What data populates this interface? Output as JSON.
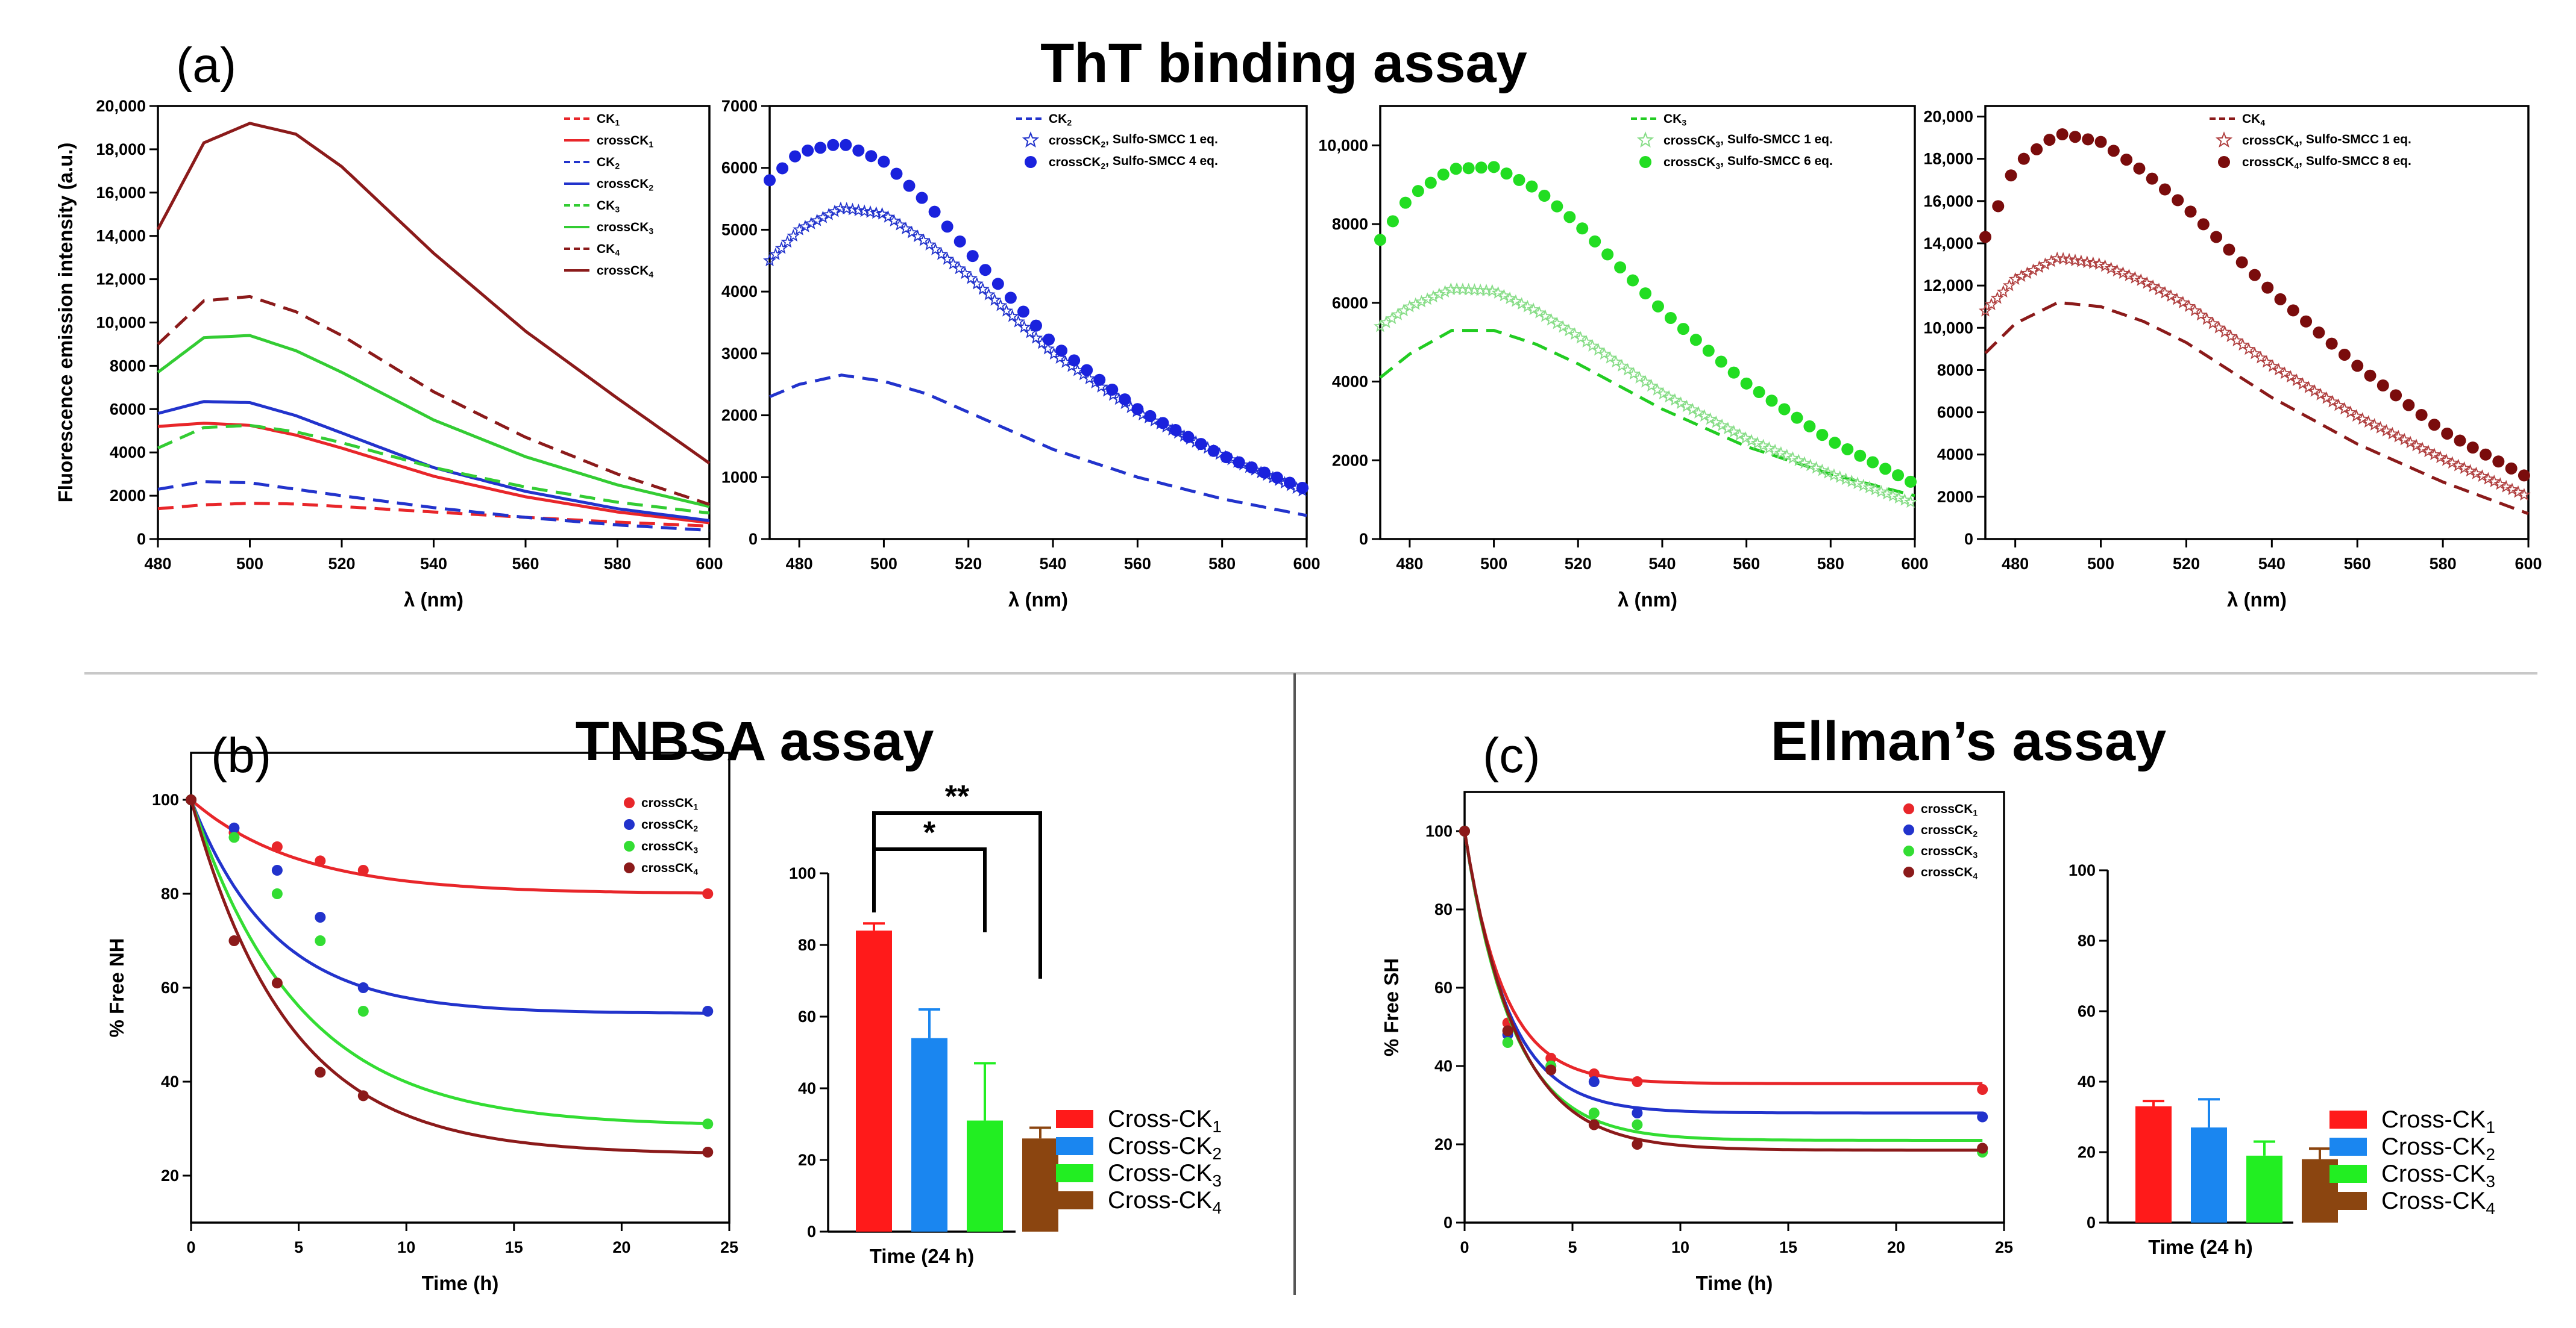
{
  "figure": {
    "labels": {
      "a": "(a)",
      "b": "(b)",
      "c": "(c)"
    },
    "titles": {
      "tht": "ThT binding assay",
      "tnbsa": "TNBSA assay",
      "ellman": "Ellman’s assay"
    }
  },
  "chart_data": [
    {
      "id": "a1",
      "type": "line",
      "xlabel": "λ (nm)",
      "ylabel": "Fluorescence emission intensity (a.u.)",
      "xlim": [
        480,
        600
      ],
      "ylim": [
        0,
        20000
      ],
      "xticks": [
        480,
        500,
        520,
        540,
        560,
        580,
        600
      ],
      "yticks": [
        0,
        2000,
        4000,
        6000,
        8000,
        10000,
        12000,
        14000,
        16000,
        18000,
        20000
      ],
      "ytick_labels": [
        "0",
        "2000",
        "4000",
        "6000",
        "8000",
        "10,000",
        "12,000",
        "14,000",
        "16,000",
        "18,000",
        "20,000"
      ],
      "legend_position": "top-right",
      "series": [
        {
          "name": "CK",
          "sub": "1",
          "color": "#e8262a",
          "style": "dash",
          "x": [
            480,
            490,
            500,
            510,
            520,
            540,
            560,
            580,
            600
          ],
          "y": [
            1400,
            1580,
            1650,
            1620,
            1500,
            1250,
            1000,
            780,
            600
          ]
        },
        {
          "name": "crossCK",
          "sub": "1",
          "color": "#e8262a",
          "style": "solid",
          "x": [
            480,
            490,
            500,
            510,
            520,
            540,
            560,
            580,
            600
          ],
          "y": [
            5200,
            5350,
            5250,
            4800,
            4200,
            2900,
            1950,
            1250,
            750
          ]
        },
        {
          "name": "CK",
          "sub": "2",
          "color": "#2233cc",
          "style": "dash",
          "x": [
            480,
            490,
            500,
            510,
            520,
            540,
            560,
            580,
            600
          ],
          "y": [
            2300,
            2650,
            2600,
            2300,
            2000,
            1450,
            1000,
            650,
            400
          ]
        },
        {
          "name": "crossCK",
          "sub": "2",
          "color": "#2233cc",
          "style": "solid",
          "x": [
            480,
            490,
            500,
            510,
            520,
            540,
            560,
            580,
            600
          ],
          "y": [
            5800,
            6350,
            6300,
            5700,
            4900,
            3300,
            2200,
            1400,
            850
          ]
        },
        {
          "name": "CK",
          "sub": "3",
          "color": "#33cc33",
          "style": "dash",
          "x": [
            480,
            490,
            500,
            510,
            520,
            540,
            560,
            580,
            600
          ],
          "y": [
            4200,
            5150,
            5250,
            4950,
            4450,
            3300,
            2400,
            1700,
            1200
          ]
        },
        {
          "name": "crossCK",
          "sub": "3",
          "color": "#33cc33",
          "style": "solid",
          "x": [
            480,
            490,
            500,
            510,
            520,
            540,
            560,
            580,
            600
          ],
          "y": [
            7700,
            9300,
            9400,
            8700,
            7700,
            5500,
            3800,
            2500,
            1500
          ]
        },
        {
          "name": "CK",
          "sub": "4",
          "color": "#8b1a1a",
          "style": "dash",
          "x": [
            480,
            490,
            500,
            510,
            520,
            540,
            560,
            580,
            600
          ],
          "y": [
            9000,
            11000,
            11200,
            10500,
            9400,
            6800,
            4700,
            3000,
            1600
          ]
        },
        {
          "name": "crossCK",
          "sub": "4",
          "color": "#8b1a1a",
          "style": "solid",
          "x": [
            480,
            490,
            500,
            510,
            520,
            540,
            560,
            580,
            600
          ],
          "y": [
            14300,
            18300,
            19200,
            18700,
            17200,
            13200,
            9600,
            6500,
            3500
          ]
        }
      ]
    },
    {
      "id": "a2",
      "type": "line",
      "xlabel": "λ (nm)",
      "xlim": [
        473,
        600
      ],
      "ylim": [
        0,
        7000
      ],
      "xticks": [
        480,
        500,
        520,
        540,
        560,
        580,
        600
      ],
      "yticks": [
        0,
        1000,
        2000,
        3000,
        4000,
        5000,
        6000,
        7000
      ],
      "ytick_labels": [
        "0",
        "1000",
        "2000",
        "3000",
        "4000",
        "5000",
        "6000",
        "7000"
      ],
      "legend_position": "top-right",
      "series": [
        {
          "name": "CK",
          "sub": "2",
          "suffix": "",
          "color": "#2233cc",
          "style": "dash",
          "x": [
            473,
            480,
            490,
            500,
            510,
            520,
            540,
            560,
            580,
            600
          ],
          "y": [
            2300,
            2500,
            2650,
            2550,
            2350,
            2050,
            1450,
            1000,
            650,
            380
          ]
        },
        {
          "name": "crossCK",
          "sub": "2",
          "suffix": ", Sulfo-SMCC 1 eq.",
          "color": "#2233cc",
          "style": "star",
          "x": [
            473,
            480,
            490,
            500,
            510,
            520,
            540,
            560,
            580,
            600
          ],
          "y": [
            4500,
            5000,
            5350,
            5250,
            4800,
            4250,
            3000,
            2050,
            1350,
            750
          ]
        },
        {
          "name": "crossCK",
          "sub": "2",
          "suffix": ", Sulfo-SMCC 4 eq.",
          "color": "#1a22dd",
          "style": "dot",
          "x": [
            473,
            480,
            490,
            500,
            510,
            520,
            540,
            560,
            580,
            600
          ],
          "y": [
            5800,
            6250,
            6400,
            6100,
            5450,
            4650,
            3150,
            2100,
            1350,
            800
          ]
        }
      ]
    },
    {
      "id": "a3",
      "type": "line",
      "xlabel": "λ (nm)",
      "xlim": [
        473,
        600
      ],
      "ylim": [
        0,
        11000
      ],
      "xticks": [
        480,
        500,
        520,
        540,
        560,
        580,
        600
      ],
      "yticks": [
        0,
        2000,
        4000,
        6000,
        8000,
        10000
      ],
      "ytick_labels": [
        "0",
        "2000",
        "4000",
        "6000",
        "8000",
        "10,000"
      ],
      "legend_position": "top-right",
      "series": [
        {
          "name": "CK",
          "sub": "3",
          "suffix": "",
          "color": "#22cc22",
          "style": "dash",
          "x": [
            473,
            480,
            490,
            500,
            510,
            520,
            540,
            560,
            580,
            600
          ],
          "y": [
            4100,
            4700,
            5300,
            5300,
            4950,
            4450,
            3300,
            2350,
            1650,
            1100
          ]
        },
        {
          "name": "crossCK",
          "sub": "3",
          "suffix": ", Sulfo-SMCC 1 eq.",
          "color": "#88dd88",
          "style": "star",
          "x": [
            473,
            480,
            490,
            500,
            510,
            520,
            540,
            560,
            580,
            600
          ],
          "y": [
            5400,
            5900,
            6350,
            6300,
            5800,
            5150,
            3700,
            2550,
            1650,
            900
          ]
        },
        {
          "name": "crossCK",
          "sub": "3",
          "suffix": ", Sulfo-SMCC 6 eq.",
          "color": "#22dd22",
          "style": "dot",
          "x": [
            473,
            480,
            490,
            500,
            510,
            520,
            540,
            560,
            580,
            600
          ],
          "y": [
            7600,
            8700,
            9400,
            9450,
            8900,
            8000,
            5800,
            3950,
            2500,
            1400
          ]
        }
      ]
    },
    {
      "id": "a4",
      "type": "line",
      "xlabel": "λ (nm)",
      "xlim": [
        473,
        600
      ],
      "ylim": [
        0,
        20500
      ],
      "xticks": [
        480,
        500,
        520,
        540,
        560,
        580,
        600
      ],
      "yticks": [
        0,
        2000,
        4000,
        6000,
        8000,
        10000,
        12000,
        14000,
        16000,
        18000,
        20000
      ],
      "ytick_labels": [
        "0",
        "2000",
        "4000",
        "6000",
        "8000",
        "10,000",
        "12,000",
        "14,000",
        "16,000",
        "18,000",
        "20,000"
      ],
      "legend_position": "top-right",
      "series": [
        {
          "name": "CK",
          "sub": "4",
          "suffix": "",
          "color": "#8b1a1a",
          "style": "dash",
          "x": [
            473,
            480,
            490,
            500,
            510,
            520,
            540,
            560,
            580,
            600
          ],
          "y": [
            8800,
            10200,
            11200,
            11000,
            10300,
            9300,
            6700,
            4500,
            2700,
            1200
          ]
        },
        {
          "name": "crossCK",
          "sub": "4",
          "suffix": ", Sulfo-SMCC 1 eq.",
          "color": "#b04040",
          "style": "star",
          "x": [
            473,
            480,
            490,
            500,
            510,
            520,
            540,
            560,
            580,
            600
          ],
          "y": [
            10800,
            12300,
            13300,
            13000,
            12200,
            11100,
            8200,
            5800,
            3800,
            2000
          ]
        },
        {
          "name": "crossCK",
          "sub": "4",
          "suffix": ", Sulfo-SMCC 8 eq.",
          "color": "#7a0c0c",
          "style": "dot",
          "x": [
            473,
            480,
            490,
            500,
            510,
            520,
            540,
            560,
            580,
            600
          ],
          "y": [
            14300,
            17700,
            19200,
            18800,
            17400,
            15700,
            11700,
            8200,
            5100,
            2900
          ]
        }
      ]
    },
    {
      "id": "b1",
      "type": "scatter",
      "xlabel": "Time (h)",
      "ylabel": "% Free NH",
      "xlim": [
        0,
        25
      ],
      "ylim": [
        10,
        110
      ],
      "xticks": [
        0,
        5,
        10,
        15,
        20,
        25
      ],
      "yticks": [
        20,
        40,
        60,
        80,
        100
      ],
      "ytick_labels": [
        "20",
        "40",
        "60",
        "80",
        "100"
      ],
      "legend_position": "top-right",
      "series": [
        {
          "name": "crossCK",
          "sub": "1",
          "color": "#e8262a",
          "x": [
            0,
            2,
            4,
            6,
            8,
            24
          ],
          "y": [
            100,
            93,
            90,
            87,
            85,
            80
          ],
          "fit": {
            "a": 80,
            "k": 0.2
          }
        },
        {
          "name": "crossCK",
          "sub": "2",
          "color": "#2233cc",
          "x": [
            0,
            2,
            4,
            6,
            8,
            24
          ],
          "y": [
            100,
            94,
            85,
            75,
            60,
            55
          ],
          "fit": {
            "a": 54.5,
            "k": 0.26
          }
        },
        {
          "name": "crossCK",
          "sub": "3",
          "color": "#33dd33",
          "x": [
            0,
            2,
            4,
            6,
            8,
            24
          ],
          "y": [
            100,
            92,
            80,
            70,
            55,
            31
          ],
          "fit": {
            "a": 30.5,
            "k": 0.2
          }
        },
        {
          "name": "crossCK",
          "sub": "4",
          "color": "#8b1a1a",
          "x": [
            0,
            2,
            4,
            6,
            8,
            24
          ],
          "y": [
            100,
            70,
            61,
            42,
            37,
            25
          ],
          "fit": {
            "a": 24.5,
            "k": 0.22
          }
        }
      ]
    },
    {
      "id": "b2",
      "type": "bar",
      "xlabel": "Time (24 h)",
      "ylim": [
        0,
        100
      ],
      "yticks": [
        0,
        20,
        40,
        60,
        80,
        100
      ],
      "ytick_labels": [
        "0",
        "20",
        "40",
        "60",
        "80",
        "100"
      ],
      "legend_position": "right",
      "categories": [
        "Cross-CK1",
        "Cross-CK2",
        "Cross-CK3",
        "Cross-CK4"
      ],
      "legend": [
        {
          "name": "Cross-CK",
          "sub": "1",
          "color": "#ff1a1a"
        },
        {
          "name": "Cross-CK",
          "sub": "2",
          "color": "#1a86f0"
        },
        {
          "name": "Cross-CK",
          "sub": "3",
          "color": "#22ee22"
        },
        {
          "name": "Cross-CK",
          "sub": "4",
          "color": "#8b4510"
        }
      ],
      "values": [
        84,
        54,
        31,
        26
      ],
      "errors": [
        2,
        8,
        16,
        3
      ],
      "significance": [
        {
          "label": "*",
          "from": 0,
          "to": 2
        },
        {
          "label": "**",
          "from": 0,
          "to": 3
        }
      ]
    },
    {
      "id": "c1",
      "type": "scatter",
      "xlabel": "Time (h)",
      "ylabel": "% Free SH",
      "xlim": [
        0,
        25
      ],
      "ylim": [
        0,
        110
      ],
      "xticks": [
        0,
        5,
        10,
        15,
        20,
        25
      ],
      "yticks": [
        0,
        20,
        40,
        60,
        80,
        100
      ],
      "ytick_labels": [
        "0",
        "20",
        "40",
        "60",
        "80",
        "100"
      ],
      "legend_position": "top-right",
      "series": [
        {
          "name": "crossCK",
          "sub": "1",
          "color": "#e8262a",
          "x": [
            0,
            2,
            4,
            6,
            8,
            24
          ],
          "y": [
            100,
            51,
            42,
            38,
            36,
            34
          ],
          "fit": {
            "a": 35.5,
            "k": 0.55
          }
        },
        {
          "name": "crossCK",
          "sub": "2",
          "color": "#2233cc",
          "x": [
            0,
            2,
            4,
            6,
            8,
            24
          ],
          "y": [
            100,
            48,
            40,
            36,
            28,
            27
          ],
          "fit": {
            "a": 28,
            "k": 0.5
          }
        },
        {
          "name": "crossCK",
          "sub": "3",
          "color": "#33dd33",
          "x": [
            0,
            2,
            4,
            6,
            8,
            24
          ],
          "y": [
            100,
            46,
            40,
            28,
            25,
            18
          ],
          "fit": {
            "a": 21,
            "k": 0.45
          }
        },
        {
          "name": "crossCK",
          "sub": "4",
          "color": "#8b1a1a",
          "x": [
            0,
            2,
            4,
            6,
            8,
            24
          ],
          "y": [
            100,
            49,
            39,
            25,
            20,
            19
          ],
          "fit": {
            "a": 18.5,
            "k": 0.42
          }
        }
      ]
    },
    {
      "id": "c2",
      "type": "bar",
      "xlabel": "Time (24 h)",
      "ylim": [
        0,
        100
      ],
      "yticks": [
        0,
        20,
        40,
        60,
        80,
        100
      ],
      "ytick_labels": [
        "0",
        "20",
        "40",
        "60",
        "80",
        "100"
      ],
      "legend_position": "right",
      "categories": [
        "Cross-CK1",
        "Cross-CK2",
        "Cross-CK3",
        "Cross-CK4"
      ],
      "legend": [
        {
          "name": "Cross-CK",
          "sub": "1",
          "color": "#ff1a1a"
        },
        {
          "name": "Cross-CK",
          "sub": "2",
          "color": "#1a86f0"
        },
        {
          "name": "Cross-CK",
          "sub": "3",
          "color": "#22ee22"
        },
        {
          "name": "Cross-CK",
          "sub": "4",
          "color": "#8b4510"
        }
      ],
      "values": [
        33,
        27,
        19,
        18
      ],
      "errors": [
        1.5,
        8,
        4,
        3
      ],
      "significance": []
    }
  ]
}
